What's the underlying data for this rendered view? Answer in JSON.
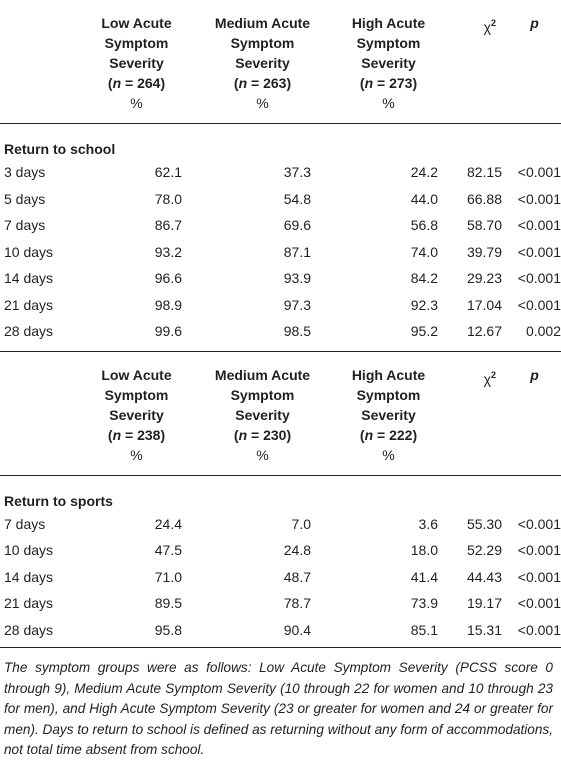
{
  "school": {
    "headers": [
      {
        "l1": "Low Acute",
        "l2": "Symptom",
        "l3": "Severity",
        "n_label": "n",
        "n_value": " = 264)",
        "pct": "%"
      },
      {
        "l1": "Medium Acute",
        "l2": "Symptom",
        "l3": "Severity",
        "n_label": "n",
        "n_value": " = 263)",
        "pct": "%"
      },
      {
        "l1": "High Acute",
        "l2": "Symptom",
        "l3": "Severity",
        "n_label": "n",
        "n_value": " = 273)",
        "pct": "%"
      }
    ],
    "chi_label": "χ",
    "chi_sup": "2",
    "p_label": "p",
    "section": "Return to school",
    "rows": [
      {
        "label": "3 days",
        "low": "62.1",
        "med": "37.3",
        "high": "24.2",
        "chi": "82.15",
        "p": "<0.001"
      },
      {
        "label": "5 days",
        "low": "78.0",
        "med": "54.8",
        "high": "44.0",
        "chi": "66.88",
        "p": "<0.001"
      },
      {
        "label": "7 days",
        "low": "86.7",
        "med": "69.6",
        "high": "56.8",
        "chi": "58.70",
        "p": "<0.001"
      },
      {
        "label": "10 days",
        "low": "93.2",
        "med": "87.1",
        "high": "74.0",
        "chi": "39.79",
        "p": "<0.001"
      },
      {
        "label": "14 days",
        "low": "96.6",
        "med": "93.9",
        "high": "84.2",
        "chi": "29.23",
        "p": "<0.001"
      },
      {
        "label": "21 days",
        "low": "98.9",
        "med": "97.3",
        "high": "92.3",
        "chi": "17.04",
        "p": "<0.001"
      },
      {
        "label": "28 days",
        "low": "99.6",
        "med": "98.5",
        "high": "95.2",
        "chi": "12.67",
        "p": "0.002"
      }
    ]
  },
  "sports": {
    "headers": [
      {
        "l1": "Low Acute",
        "l2": "Symptom",
        "l3": "Severity",
        "n_label": "n",
        "n_value": " = 238)",
        "pct": "%"
      },
      {
        "l1": "Medium Acute",
        "l2": "Symptom",
        "l3": "Severity",
        "n_label": "n",
        "n_value": " = 230)",
        "pct": "%"
      },
      {
        "l1": "High Acute",
        "l2": "Symptom",
        "l3": "Severity",
        "n_label": "n",
        "n_value": " = 222)",
        "pct": "%"
      }
    ],
    "chi_label": "χ",
    "chi_sup": "2",
    "p_label": "p",
    "section": "Return to sports",
    "rows": [
      {
        "label": "7 days",
        "low": "24.4",
        "med": "7.0",
        "high": "3.6",
        "chi": "55.30",
        "p": "<0.001"
      },
      {
        "label": "10 days",
        "low": "47.5",
        "med": "24.8",
        "high": "18.0",
        "chi": "52.29",
        "p": "<0.001"
      },
      {
        "label": "14 days",
        "low": "71.0",
        "med": "48.7",
        "high": "41.4",
        "chi": "44.43",
        "p": "<0.001"
      },
      {
        "label": "21 days",
        "low": "89.5",
        "med": "78.7",
        "high": "73.9",
        "chi": "19.17",
        "p": "<0.001"
      },
      {
        "label": "28 days",
        "low": "95.8",
        "med": "90.4",
        "high": "85.1",
        "chi": "15.31",
        "p": "<0.001"
      }
    ]
  },
  "footnote": "The symptom groups were as follows: Low Acute Symptom Severity (PCSS score 0 through 9), Medium Acute Symptom Severity (10 through 22 for women and 10 through 23 for men), and High Acute Symptom Severity (23 or greater for women and 24 or greater for men). Days to return to school is defined as returning without any form of accommodations, not total time absent from school."
}
